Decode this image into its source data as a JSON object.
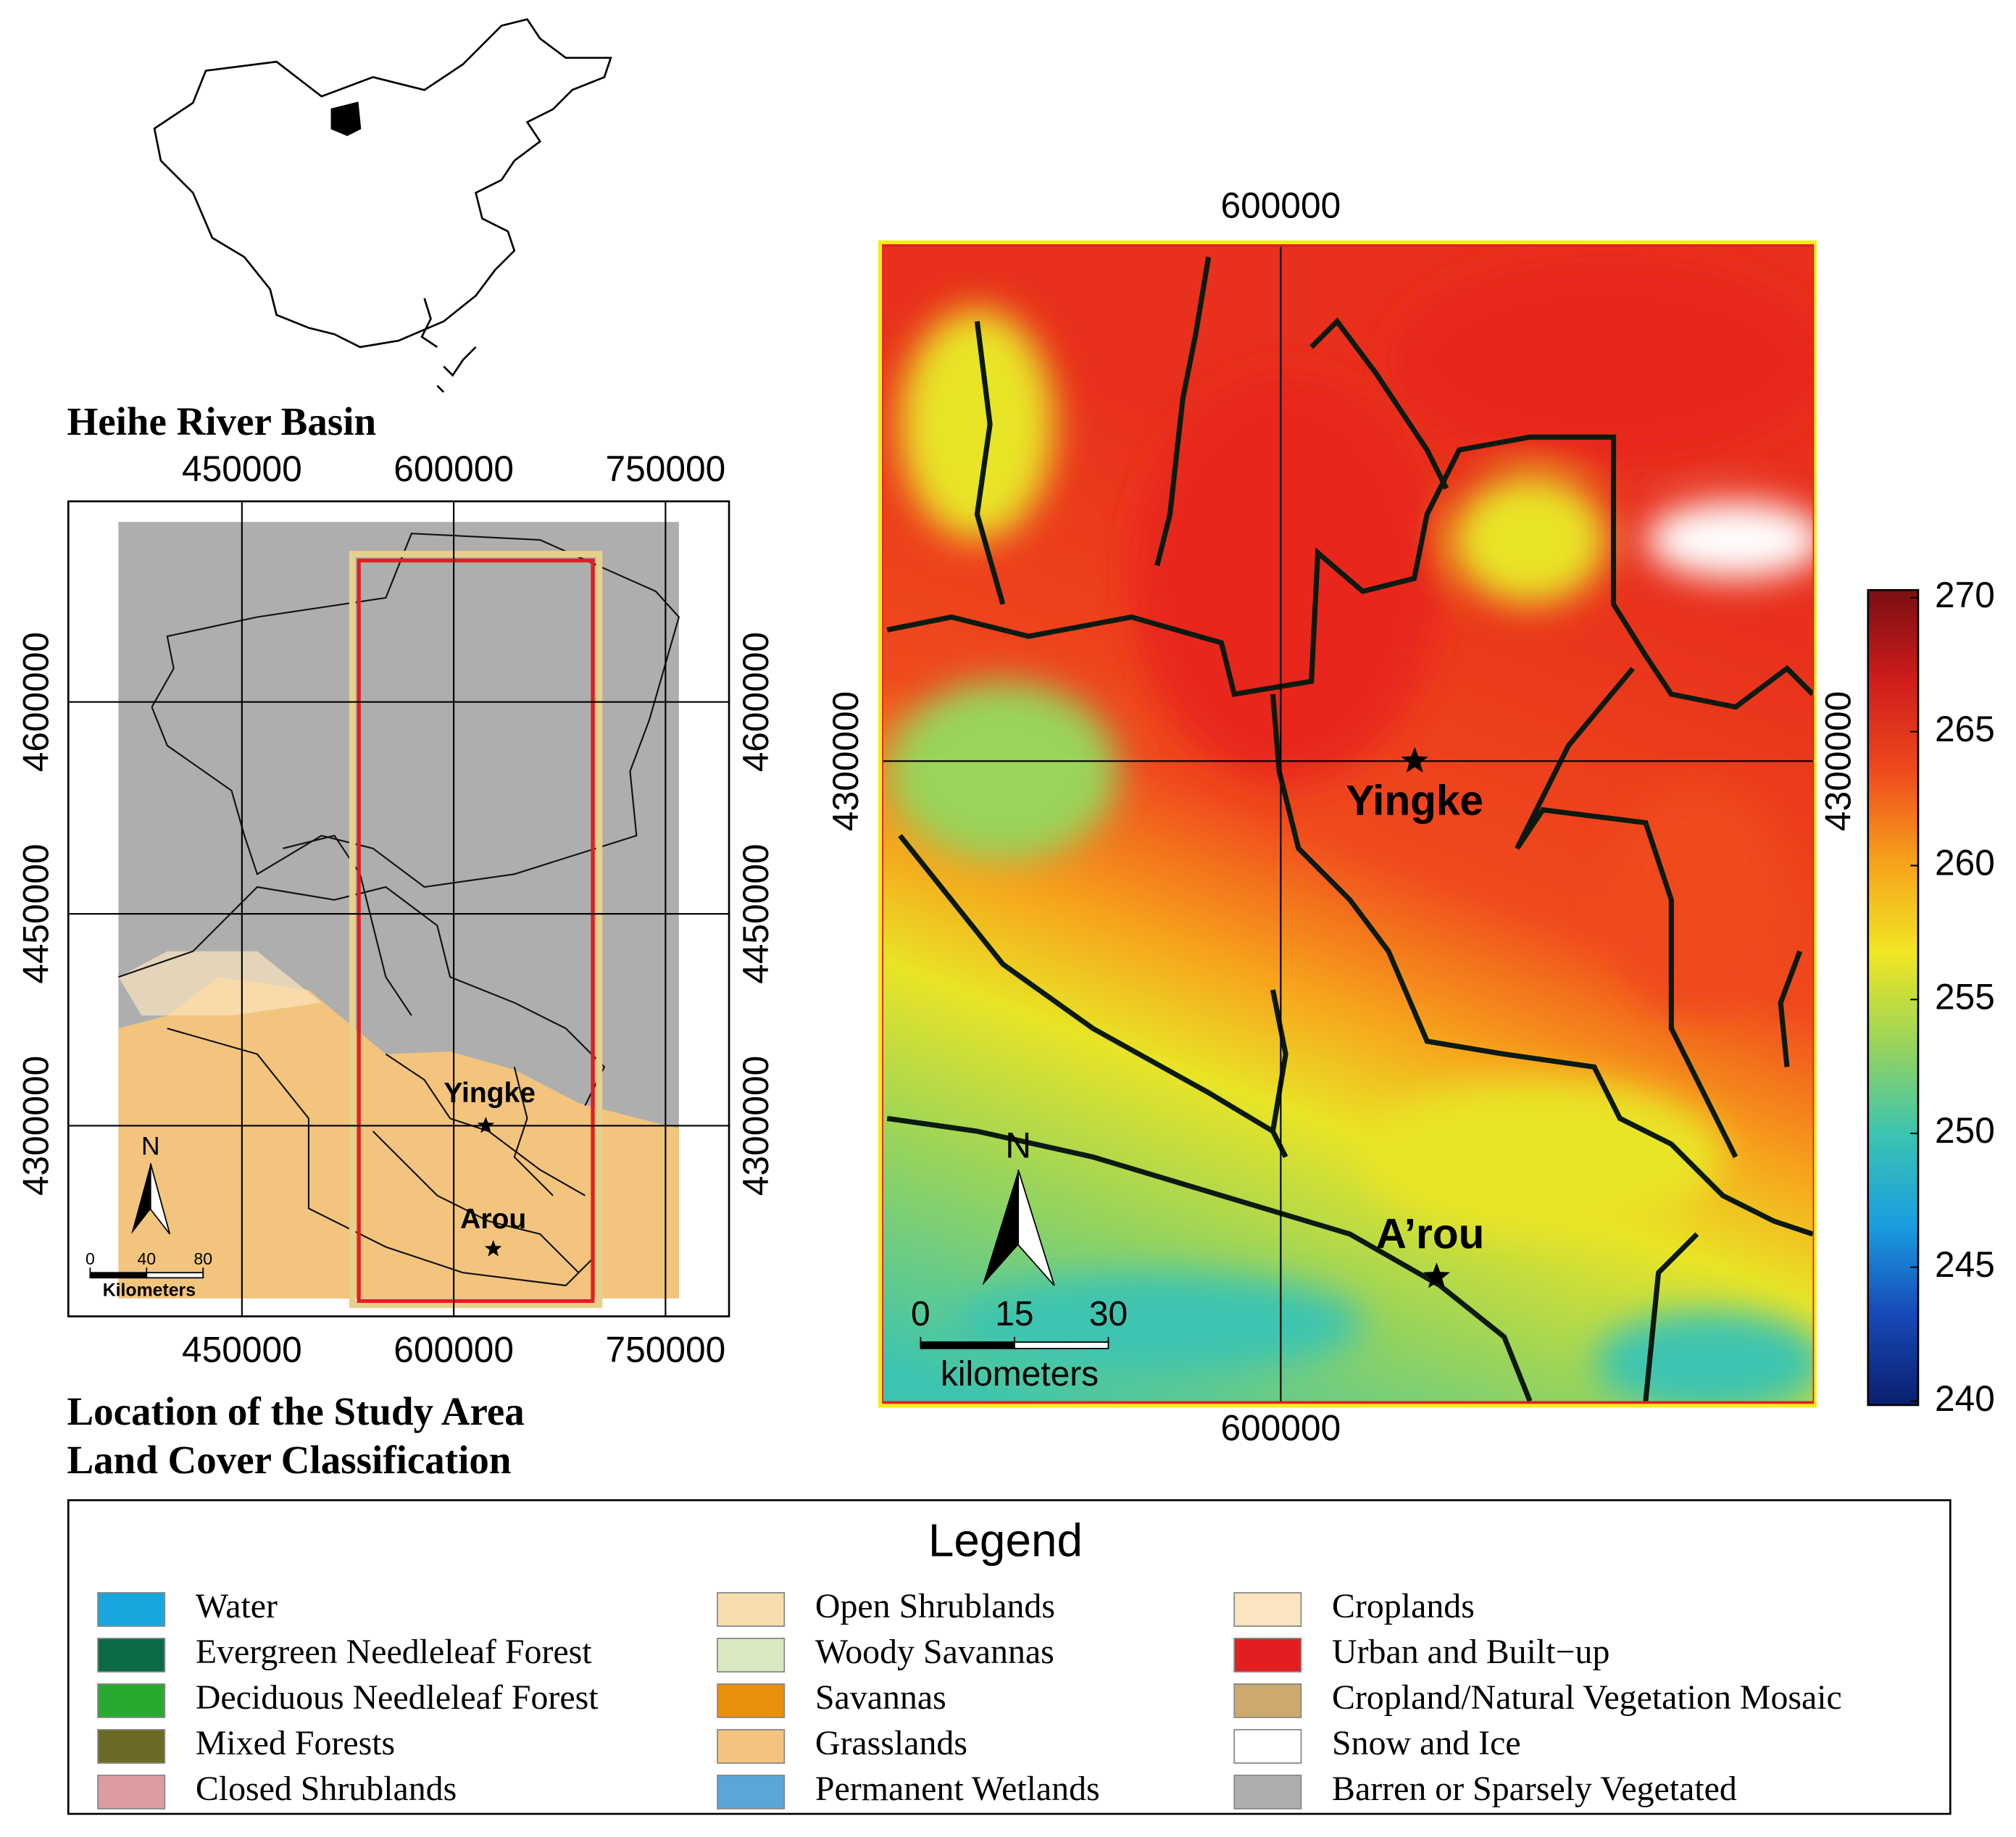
{
  "study_area_map": {
    "title": "Heihe River Basin",
    "caption": [
      "Location of the Study Area",
      "Land Cover Classification"
    ],
    "xlim": [
      327000,
      795000
    ],
    "ylim": [
      4165000,
      4742000
    ],
    "xticks": [
      450000,
      600000,
      750000
    ],
    "yticks": [
      4300000,
      4450000,
      4600000
    ],
    "places": [
      {
        "name": "Yingke",
        "x": 622700,
        "y": 4300000
      },
      {
        "name": "Arou",
        "x": 628000,
        "y": 4212700
      }
    ],
    "north": "N",
    "scale_bar": {
      "ticks": [
        0,
        40,
        80
      ],
      "unit": "Kilometers"
    }
  },
  "temperature_map": {
    "xlim": [
      536500,
      685000
    ],
    "ylim": [
      4197700,
      4382200
    ],
    "xticks": [
      600000
    ],
    "yticks": [
      4300000
    ],
    "places": [
      {
        "name": "Yingke",
        "x": 621400,
        "y": 4300000
      },
      {
        "name": "A’rou",
        "x": 624900,
        "y": 4217600
      }
    ],
    "north": "N",
    "scale_bar": {
      "ticks": [
        0,
        15,
        30
      ],
      "unit": "kilometers"
    },
    "colorbar": {
      "lim": [
        240,
        270
      ],
      "ticks": [
        240,
        245,
        250,
        255,
        260,
        265,
        270
      ],
      "colormap": [
        "#0a1f6e",
        "#1749b8",
        "#1a9ee0",
        "#3cc4b0",
        "#9ad45a",
        "#f1e623",
        "#f7a21c",
        "#ef4a1d",
        "#d01c1c",
        "#7a0f12"
      ]
    }
  },
  "legend": {
    "title": "Legend",
    "items": [
      {
        "name": "Water",
        "color": "#17a6de"
      },
      {
        "name": "Evergreen Needleleaf Forest",
        "color": "#0b6b47"
      },
      {
        "name": "Deciduous Needleleaf Forest",
        "color": "#27ab2f"
      },
      {
        "name": "Mixed Forests",
        "color": "#6b6b25"
      },
      {
        "name": "Closed Shrublands",
        "color": "#dc9ca0"
      },
      {
        "name": "Open Shrublands",
        "color": "#f6deb0"
      },
      {
        "name": "Woody Savannas",
        "color": "#dae8c2"
      },
      {
        "name": "Savannas",
        "color": "#e8900c"
      },
      {
        "name": "Grasslands",
        "color": "#f2c47e"
      },
      {
        "name": "Permanent Wetlands",
        "color": "#5aa6d8"
      },
      {
        "name": "Croplands",
        "color": "#fbe4bf"
      },
      {
        "name": "Urban and Built−up",
        "color": "#e21e20"
      },
      {
        "name": "Cropland/Natural Vegetation Mosaic",
        "color": "#cda96e"
      },
      {
        "name": "Snow and Ice",
        "color": "#ffffff"
      },
      {
        "name": "Barren or Sparsely Vegetated",
        "color": "#aeaeae"
      }
    ]
  }
}
